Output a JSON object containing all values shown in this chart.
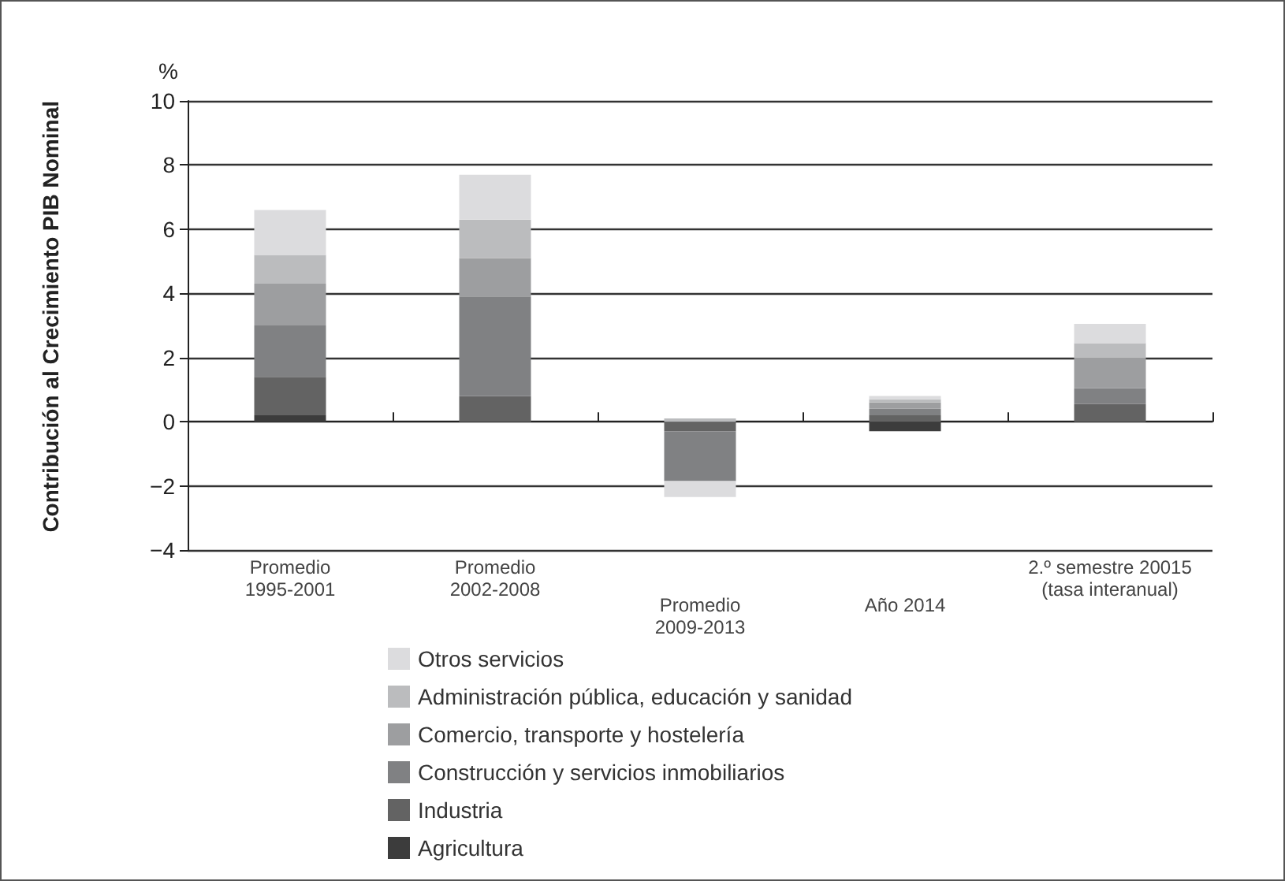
{
  "chart_data": {
    "type": "bar",
    "stacked": true,
    "ylabel": "Contribución al Crecimiento PIB Nominal",
    "annotations": [
      "%"
    ],
    "categories": [
      "Promedio\n1995-2001",
      "Promedio\n2002-2008",
      "Promedio\n2009-2013",
      "Año 2014",
      "2.º semestre 20015\n(tasa interanual)"
    ],
    "series": [
      {
        "name": "Agricultura",
        "color": "#3c3c3c",
        "values": [
          0.2,
          0,
          0,
          -0.3,
          0
        ]
      },
      {
        "name": "Industria",
        "color": "#636363",
        "values": [
          1.2,
          0.8,
          -0.3,
          0.2,
          0.55
        ]
      },
      {
        "name": "Construcción y servicios inmobiliarios",
        "color": "#808183",
        "values": [
          1.6,
          3.1,
          -1.55,
          0.2,
          0.5
        ]
      },
      {
        "name": "Comercio, transporte y hostelería",
        "color": "#9d9ea0",
        "values": [
          1.3,
          1.2,
          0,
          0.2,
          0.95
        ]
      },
      {
        "name": "Administración pública, educación y sanidad",
        "color": "#bbbcbe",
        "values": [
          0.9,
          1.2,
          0.1,
          0.1,
          0.45
        ]
      },
      {
        "name": "Otros servicios",
        "color": "#dcdcde",
        "values": [
          1.4,
          1.4,
          -0.5,
          0.1,
          0.6
        ]
      }
    ],
    "ylim": [
      -4,
      10
    ],
    "yticks": [
      -4,
      -2,
      0,
      2,
      4,
      6,
      8,
      10
    ],
    "grid": "y",
    "legend": "bottom"
  }
}
